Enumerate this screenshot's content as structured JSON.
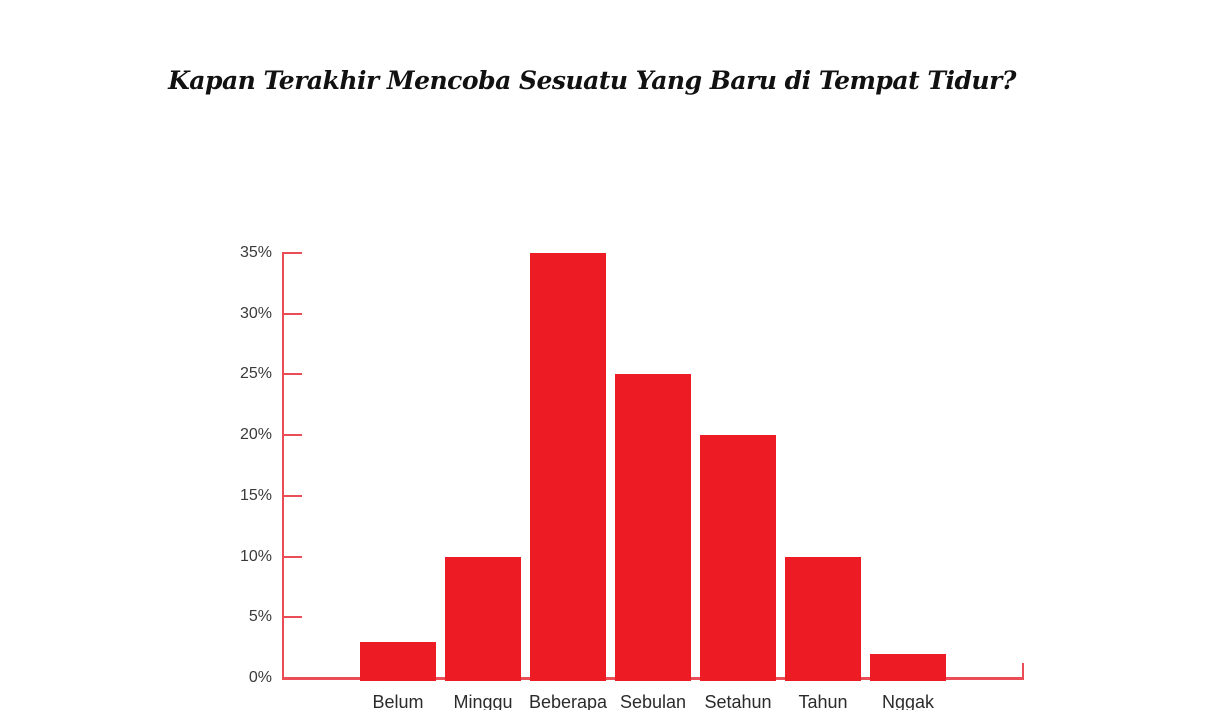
{
  "chart": {
    "title": "Kapan Terakhir Mencoba Sesuatu Yang Baru di Tempat Tidur?"
  },
  "chart_data": {
    "type": "bar",
    "title": "Kapan Terakhir Mencoba Sesuatu Yang Baru di Tempat Tidur?",
    "categories": [
      "Belum",
      "Minggu",
      "Beberapa",
      "Sebulan",
      "Setahun",
      "Tahun",
      "Nggak"
    ],
    "values": [
      3,
      10,
      35,
      25,
      20,
      10,
      2
    ],
    "unit": "%",
    "xlabel": "",
    "ylabel": "",
    "ylim": [
      0,
      35
    ],
    "ytick_step": 5,
    "ytick_labels": [
      "0%",
      "5%",
      "10%",
      "15%",
      "20%",
      "25%",
      "30%",
      "35%"
    ],
    "grid": false,
    "legend": null,
    "colors": {
      "bar": "#ed1c24",
      "axis": "#ea4d55",
      "ytick_label": "#3a3a3a",
      "category_label": "#2b2b2b",
      "title": "#111111",
      "background": "#ffffff"
    }
  }
}
